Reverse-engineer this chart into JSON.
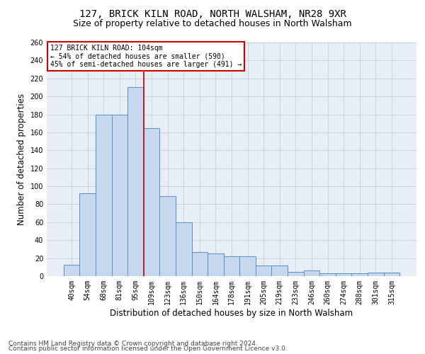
{
  "title": "127, BRICK KILN ROAD, NORTH WALSHAM, NR28 9XR",
  "subtitle": "Size of property relative to detached houses in North Walsham",
  "xlabel": "Distribution of detached houses by size in North Walsham",
  "ylabel": "Number of detached properties",
  "categories": [
    "40sqm",
    "54sqm",
    "68sqm",
    "81sqm",
    "95sqm",
    "109sqm",
    "123sqm",
    "136sqm",
    "150sqm",
    "164sqm",
    "178sqm",
    "191sqm",
    "205sqm",
    "219sqm",
    "233sqm",
    "246sqm",
    "260sqm",
    "274sqm",
    "288sqm",
    "301sqm",
    "315sqm"
  ],
  "values": [
    13,
    92,
    180,
    180,
    210,
    165,
    89,
    60,
    27,
    25,
    22,
    22,
    12,
    12,
    5,
    6,
    3,
    3,
    3,
    4,
    4
  ],
  "bar_color": "#c5d8ed",
  "bar_edge_color": "#5b8dc8",
  "vline_x_index": 4,
  "vline_color": "#cc0000",
  "annotation_line1": "127 BRICK KILN ROAD: 104sqm",
  "annotation_line2": "← 54% of detached houses are smaller (590)",
  "annotation_line3": "45% of semi-detached houses are larger (491) →",
  "annotation_box_color": "#ffffff",
  "annotation_box_edge": "#cc0000",
  "ylim": [
    0,
    260
  ],
  "yticks": [
    0,
    20,
    40,
    60,
    80,
    100,
    120,
    140,
    160,
    180,
    200,
    220,
    240,
    260
  ],
  "grid_color": "#c8d0dc",
  "bg_color": "#e8eef6",
  "footer1": "Contains HM Land Registry data © Crown copyright and database right 2024.",
  "footer2": "Contains public sector information licensed under the Open Government Licence v3.0.",
  "title_fontsize": 10,
  "subtitle_fontsize": 9,
  "xlabel_fontsize": 8.5,
  "ylabel_fontsize": 8.5,
  "tick_fontsize": 7,
  "footer_fontsize": 6.5
}
